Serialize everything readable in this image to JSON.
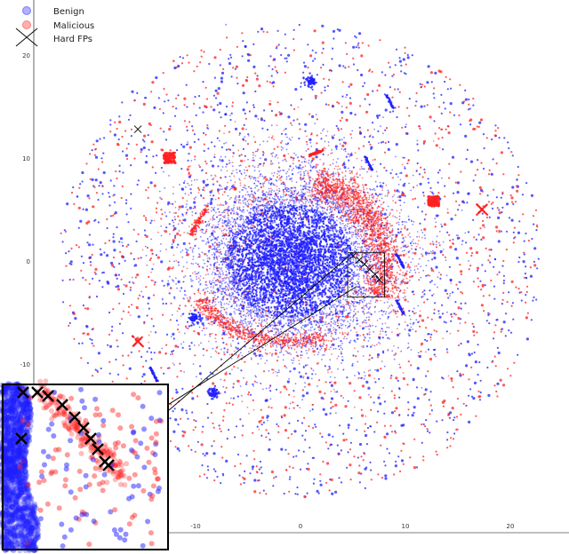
{
  "chart_data": {
    "type": "scatter",
    "title": "",
    "xlabel": "",
    "ylabel": "",
    "xlim": [
      -25,
      25
    ],
    "ylim": [
      -25,
      25
    ],
    "x_ticks": [
      -10,
      0,
      10,
      20
    ],
    "x_tick_labels": [
      "-10",
      "0",
      "10",
      "20"
    ],
    "y_ticks": [
      20,
      10,
      0,
      -10
    ],
    "y_tick_labels": [
      "20",
      "10",
      "0",
      "-10"
    ],
    "grid": false,
    "legend_position": "top-left",
    "series": [
      {
        "name": "Benign",
        "marker": "circle",
        "color": "#1f1fff",
        "description_points": [
          {
            "x": 0,
            "y": 0,
            "spread": 6,
            "density": "high"
          }
        ]
      },
      {
        "name": "Malicious",
        "marker": "circle",
        "color": "#ff2020",
        "clusters": [
          {
            "x": 3,
            "y": 7,
            "shape": "crescent"
          },
          {
            "x": -6.5,
            "y": -12,
            "shape": "arc"
          },
          {
            "x": -12.5,
            "y": 10,
            "shape": "square"
          },
          {
            "x": 12.7,
            "y": 5.8,
            "shape": "square"
          },
          {
            "x": 17.3,
            "y": 5,
            "shape": "x"
          },
          {
            "x": -15.5,
            "y": -7.8,
            "shape": "x"
          },
          {
            "x": 1.5,
            "y": 10.5,
            "shape": "spike"
          }
        ]
      },
      {
        "name": "Hard FPs",
        "marker": "x",
        "color": "#000000",
        "points": [
          {
            "x": 5,
            "y": 0.5
          },
          {
            "x": 5.6,
            "y": 0.1
          },
          {
            "x": 6.1,
            "y": -0.3
          },
          {
            "x": 6.6,
            "y": -0.8
          },
          {
            "x": 7.1,
            "y": -1.3
          },
          {
            "x": 7.5,
            "y": -1.8
          },
          {
            "x": -15.5,
            "y": 12.8
          }
        ]
      }
    ],
    "inset": {
      "zoom_region": {
        "x": [
          4.5,
          8
        ],
        "y": [
          -3.5,
          0.8
        ]
      },
      "placement": "bottom-left"
    }
  },
  "colors": {
    "benign": "#1f1fff",
    "malicious": "#ff2020",
    "hard_fp": "#000000"
  }
}
